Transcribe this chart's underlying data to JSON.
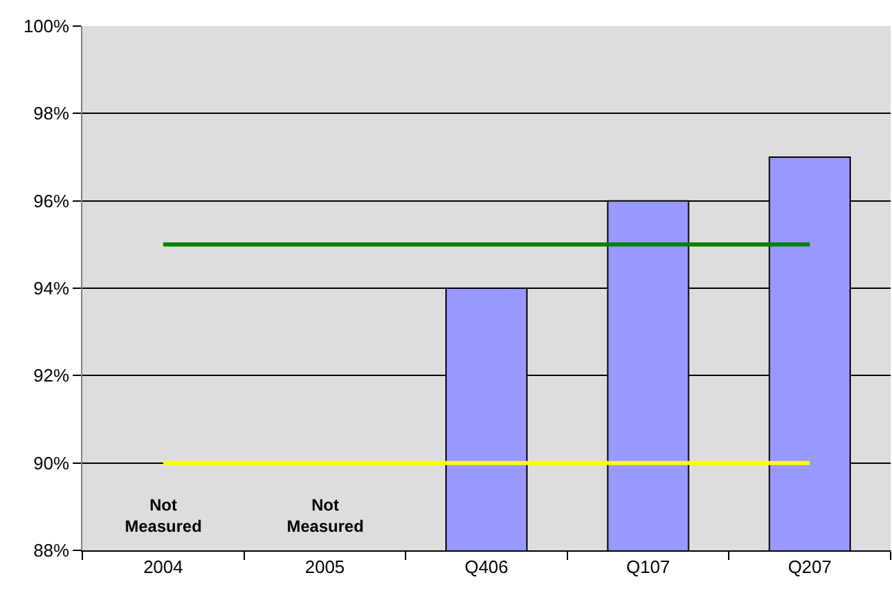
{
  "chart_data": {
    "type": "bar",
    "categories": [
      "2004",
      "2005",
      "Q406",
      "Q107",
      "Q207"
    ],
    "series": [
      {
        "color": "#9999ff",
        "values": [
          null,
          null,
          94,
          96,
          97
        ]
      },
      {
        "type": "line",
        "color": "#008000",
        "values": [
          95,
          95,
          95,
          95,
          95
        ]
      },
      {
        "type": "line",
        "color": "#ffff00",
        "values": [
          90,
          90,
          90,
          90,
          90
        ]
      }
    ],
    "ylim": [
      88,
      100
    ],
    "yticks": [
      {
        "value": 88,
        "label": "88%"
      },
      {
        "value": 90,
        "label": "90%"
      },
      {
        "value": 92,
        "label": "92%"
      },
      {
        "value": 94,
        "label": "94%"
      },
      {
        "value": 96,
        "label": "96%"
      },
      {
        "value": 98,
        "label": "98%"
      },
      {
        "value": 100,
        "label": "100%"
      }
    ],
    "annotations": [
      "Not Measured",
      "Not Measured"
    ],
    "grid": "y",
    "marker": "none",
    "line_style": "solid"
  }
}
